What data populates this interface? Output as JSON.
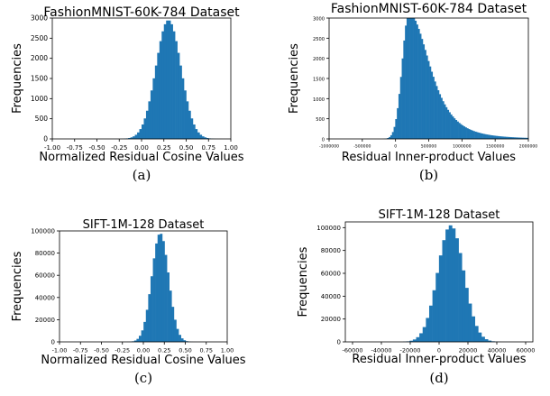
{
  "chart_data": [
    {
      "type": "histogram",
      "title": "FashionMNIST-60K-784 Dataset",
      "xlabel": "Normalized Residual Cosine Values",
      "ylabel": "Frequencies",
      "caption": "(a)",
      "xlim": [
        -1.0,
        1.0
      ],
      "ylim": [
        0,
        3000
      ],
      "xticks": [
        "-1.00",
        "-0.75",
        "-0.50",
        "-0.25",
        "0.00",
        "0.25",
        "0.50",
        "0.75",
        "1.00"
      ],
      "yticks": [
        "0",
        "500",
        "1000",
        "1500",
        "2000",
        "2500",
        "3000"
      ],
      "color": "#1f77b4",
      "distribution": {
        "shape": "gaussian",
        "center": 0.3,
        "spread": 0.14,
        "peak": 2950,
        "bin_start": -0.55,
        "bin_end": 0.9,
        "bins": 58
      }
    },
    {
      "type": "histogram",
      "title": "FashionMNIST-60K-784 Dataset",
      "xlabel": "Residual Inner-product Values",
      "ylabel": "Frequencies",
      "caption": "(b)",
      "xlim": [
        -1000000,
        2000000
      ],
      "ylim": [
        0,
        3000
      ],
      "xticks": [
        "-1000000",
        "-500000",
        "0",
        "500000",
        "1000000",
        "1500000",
        "2000000"
      ],
      "yticks": [
        "0",
        "500",
        "1000",
        "1500",
        "2000",
        "2500",
        "3000"
      ],
      "color": "#1f77b4",
      "distribution": {
        "shape": "skewed",
        "center": 200000,
        "spread_left": 100000,
        "spread_right": 300000,
        "peak": 3120,
        "bin_start": -200000,
        "bin_end": 2000000,
        "bins": 90
      }
    },
    {
      "type": "histogram",
      "title": "SIFT-1M-128 Dataset",
      "xlabel": "Normalized Residual Cosine Values",
      "ylabel": "Frequencies",
      "caption": "(c)",
      "xlim": [
        -1.0,
        1.0
      ],
      "ylim": [
        0,
        100000
      ],
      "xticks": [
        "-1.00",
        "-0.75",
        "-0.50",
        "-0.25",
        "0.00",
        "0.25",
        "0.50",
        "0.75",
        "1.00"
      ],
      "yticks": [
        "0",
        "20000",
        "40000",
        "60000",
        "80000",
        "100000"
      ],
      "color": "#1f77b4",
      "distribution": {
        "shape": "gaussian",
        "center": 0.2,
        "spread": 0.1,
        "peak": 98000,
        "bin_start": -0.5,
        "bin_end": 0.95,
        "bins": 52
      }
    },
    {
      "type": "histogram",
      "title": "SIFT-1M-128 Dataset",
      "xlabel": "Residual Inner-product Values",
      "ylabel": "Frequencies",
      "caption": "(d)",
      "xlim": [
        -65000,
        65000
      ],
      "ylim": [
        0,
        105000
      ],
      "xticks": [
        "-60000",
        "-40000",
        "-20000",
        "0",
        "20000",
        "40000",
        "60000"
      ],
      "yticks": [
        "0",
        "20000",
        "40000",
        "60000",
        "80000",
        "100000"
      ],
      "color": "#1f77b4",
      "distribution": {
        "shape": "gaussian",
        "center": 8000,
        "spread": 9000,
        "peak": 102000,
        "bin_start": -25000,
        "bin_end": 52000,
        "bins": 34
      }
    }
  ]
}
